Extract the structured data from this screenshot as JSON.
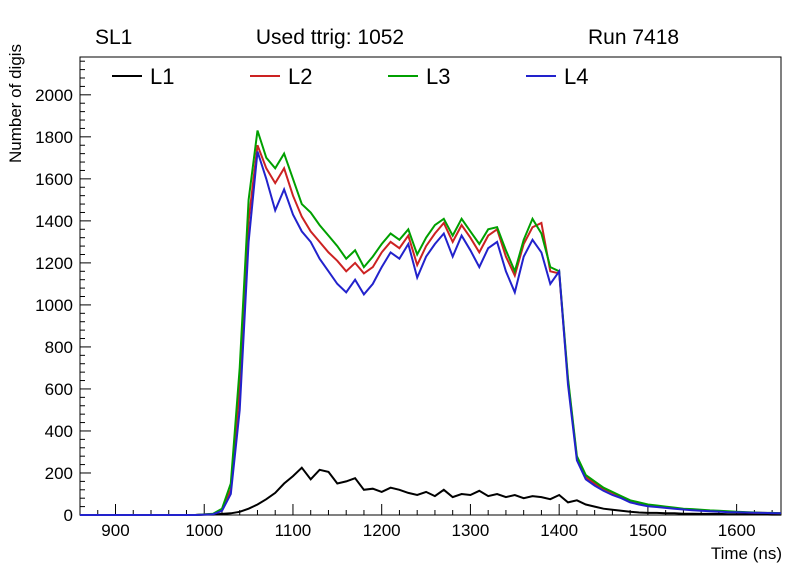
{
  "header": {
    "left": "SL1",
    "center": "Used ttrig: 1052",
    "right": "Run 7418"
  },
  "axes": {
    "x_label": "Time (ns)",
    "y_label": "Number of digis"
  },
  "chart_data": {
    "type": "line",
    "title": "Used ttrig: 1052",
    "xlabel": "Time (ns)",
    "ylabel": "Number of digis",
    "xlim": [
      860,
      1650
    ],
    "ylim": [
      0,
      2180
    ],
    "x_ticks": [
      900,
      1000,
      1100,
      1200,
      1300,
      1400,
      1500,
      1600
    ],
    "y_ticks": [
      0,
      200,
      400,
      600,
      800,
      1000,
      1200,
      1400,
      1600,
      1800,
      2000
    ],
    "x_minor_step": 20,
    "y_minor_step": 40,
    "grid": false,
    "legend_position": "top-inside",
    "x": [
      860,
      870,
      880,
      890,
      900,
      910,
      920,
      930,
      940,
      950,
      960,
      970,
      980,
      990,
      1000,
      1010,
      1020,
      1030,
      1040,
      1050,
      1060,
      1070,
      1080,
      1090,
      1100,
      1110,
      1120,
      1130,
      1140,
      1150,
      1160,
      1170,
      1180,
      1190,
      1200,
      1210,
      1220,
      1230,
      1240,
      1250,
      1260,
      1270,
      1280,
      1290,
      1300,
      1310,
      1320,
      1330,
      1340,
      1350,
      1360,
      1370,
      1380,
      1390,
      1400,
      1410,
      1420,
      1430,
      1440,
      1450,
      1460,
      1470,
      1480,
      1490,
      1500,
      1510,
      1520,
      1530,
      1540,
      1550,
      1560,
      1570,
      1580,
      1590,
      1600,
      1610,
      1620,
      1630,
      1640,
      1650
    ],
    "series": [
      {
        "name": "L1",
        "color": "#000000",
        "values": [
          0,
          0,
          0,
          0,
          0,
          0,
          0,
          0,
          0,
          0,
          0,
          0,
          0,
          0,
          2,
          2,
          5,
          8,
          15,
          30,
          50,
          75,
          105,
          150,
          185,
          225,
          170,
          215,
          205,
          150,
          160,
          175,
          120,
          125,
          110,
          130,
          120,
          105,
          95,
          110,
          90,
          120,
          85,
          100,
          95,
          115,
          90,
          100,
          85,
          95,
          80,
          90,
          85,
          75,
          95,
          60,
          70,
          50,
          40,
          30,
          25,
          20,
          15,
          12,
          10,
          10,
          8,
          8,
          6,
          6,
          5,
          5,
          5,
          4,
          4,
          4,
          3,
          3,
          2,
          2
        ]
      },
      {
        "name": "L2",
        "color": "#cc2222",
        "values": [
          0,
          0,
          0,
          0,
          0,
          0,
          0,
          0,
          0,
          0,
          0,
          0,
          0,
          0,
          3,
          5,
          25,
          120,
          600,
          1400,
          1760,
          1650,
          1580,
          1650,
          1520,
          1420,
          1350,
          1300,
          1250,
          1210,
          1160,
          1200,
          1150,
          1180,
          1250,
          1300,
          1270,
          1330,
          1190,
          1280,
          1340,
          1390,
          1300,
          1380,
          1320,
          1250,
          1330,
          1360,
          1230,
          1140,
          1290,
          1370,
          1390,
          1160,
          1150,
          640,
          270,
          180,
          150,
          125,
          105,
          85,
          65,
          55,
          48,
          42,
          38,
          33,
          28,
          25,
          22,
          20,
          18,
          16,
          14,
          12,
          11,
          10,
          9,
          8
        ]
      },
      {
        "name": "L3",
        "color": "#00a000",
        "values": [
          0,
          0,
          0,
          0,
          0,
          0,
          0,
          0,
          0,
          0,
          0,
          0,
          0,
          0,
          3,
          6,
          30,
          150,
          700,
          1500,
          1830,
          1700,
          1650,
          1720,
          1600,
          1480,
          1440,
          1380,
          1330,
          1280,
          1220,
          1260,
          1180,
          1230,
          1290,
          1340,
          1310,
          1360,
          1240,
          1320,
          1380,
          1410,
          1330,
          1410,
          1350,
          1290,
          1360,
          1370,
          1260,
          1160,
          1310,
          1410,
          1340,
          1180,
          1160,
          650,
          280,
          190,
          160,
          130,
          110,
          90,
          70,
          60,
          50,
          45,
          40,
          35,
          30,
          28,
          25,
          22,
          20,
          18,
          15,
          14,
          12,
          10,
          10,
          8
        ]
      },
      {
        "name": "L4",
        "color": "#2222cc",
        "values": [
          0,
          0,
          0,
          0,
          0,
          0,
          0,
          0,
          0,
          0,
          0,
          0,
          0,
          0,
          2,
          4,
          20,
          100,
          500,
          1300,
          1730,
          1600,
          1450,
          1550,
          1430,
          1350,
          1300,
          1220,
          1160,
          1100,
          1060,
          1120,
          1050,
          1100,
          1180,
          1250,
          1220,
          1290,
          1130,
          1230,
          1290,
          1340,
          1230,
          1330,
          1260,
          1180,
          1270,
          1300,
          1160,
          1060,
          1230,
          1310,
          1250,
          1100,
          1160,
          620,
          260,
          170,
          140,
          115,
          95,
          80,
          60,
          50,
          42,
          38,
          34,
          30,
          26,
          23,
          20,
          18,
          16,
          14,
          13,
          12,
          11,
          10,
          9,
          8
        ]
      }
    ]
  }
}
